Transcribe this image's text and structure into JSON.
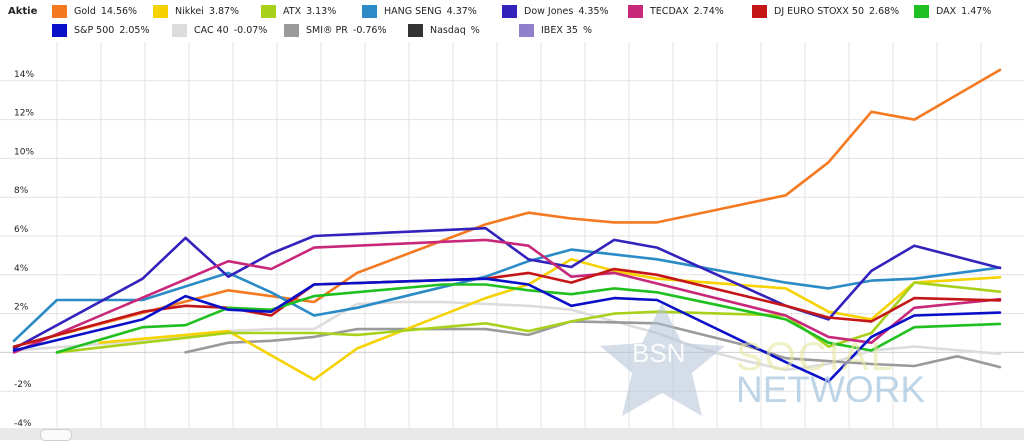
{
  "legend": {
    "title": "Aktie",
    "items": [
      {
        "name": "Gold",
        "value": "14.56%",
        "color": "#f47920"
      },
      {
        "name": "Nikkei",
        "value": "3.87%",
        "color": "#f5d200"
      },
      {
        "name": "ATX",
        "value": "3.13%",
        "color": "#a8d11c"
      },
      {
        "name": "HANG SENG",
        "value": "4.37%",
        "color": "#2a8bc7"
      },
      {
        "name": "Dow Jones",
        "value": "4.35%",
        "color": "#3322bb"
      },
      {
        "name": "TECDAX",
        "value": "2.74%",
        "color": "#c8287a"
      },
      {
        "name": "DJ EURO STOXX 50",
        "value": "2.68%",
        "color": "#c41616"
      },
      {
        "name": "DAX",
        "value": "1.47%",
        "color": "#20c020"
      },
      {
        "name": "S&P 500",
        "value": "2.05%",
        "color": "#0a10c8"
      },
      {
        "name": "CAC 40",
        "value": "-0.07%",
        "color": "#dcdcdc"
      },
      {
        "name": "SMI® PR",
        "value": "-0.76%",
        "color": "#9a9a9a"
      },
      {
        "name": "Nasdaq",
        "value": "%",
        "color": "#333333"
      },
      {
        "name": "IBEX 35",
        "value": "%",
        "color": "#9080cc"
      }
    ]
  },
  "watermark": {
    "line1": "BSN",
    "line2": "SOCIAL",
    "line3": "NETWORK"
  },
  "chart_data": {
    "type": "line",
    "ylim": [
      -4,
      16
    ],
    "yticks": [
      -4,
      -2,
      0,
      2,
      4,
      6,
      8,
      10,
      12,
      14
    ],
    "ytick_labels": [
      "-4%",
      "-2%",
      "",
      "2%",
      "4%",
      "6%",
      "8%",
      "10%",
      "12%",
      "14%"
    ],
    "grid": true,
    "x": [
      0,
      1,
      2,
      3,
      4,
      5,
      6,
      7,
      8,
      9,
      10,
      11,
      12,
      13,
      14,
      15,
      16,
      17,
      18,
      19,
      20,
      21,
      22,
      23
    ],
    "series": [
      {
        "name": "CAC 40",
        "color": "#dcdcdc",
        "values": [
          0.1,
          null,
          null,
          0.6,
          0.8,
          1.1,
          1.2,
          1.2,
          2.5,
          2.6,
          2.6,
          2.5,
          2.4,
          2.2,
          1.6,
          1.0,
          0.2,
          -0.4,
          -0.9,
          -0.6,
          0.1,
          0.3,
          null,
          -0.07
        ]
      },
      {
        "name": "SMI® PR",
        "color": "#9a9a9a",
        "values": [
          null,
          null,
          null,
          null,
          0.0,
          0.5,
          0.6,
          0.8,
          1.2,
          null,
          1.2,
          1.2,
          0.9,
          1.6,
          null,
          1.5,
          null,
          0.4,
          -0.3,
          null,
          -0.6,
          -0.7,
          -0.2,
          -0.76
        ]
      },
      {
        "name": "Gold",
        "color": "#f47920",
        "values": [
          0.3,
          null,
          null,
          null,
          null,
          3.2,
          null,
          2.6,
          4.1,
          null,
          null,
          6.6,
          7.2,
          6.9,
          6.7,
          6.7,
          null,
          null,
          8.1,
          9.8,
          12.4,
          12.0,
          null,
          14.56
        ]
      },
      {
        "name": "Nikkei",
        "color": "#f5d200",
        "values": [
          null,
          null,
          0.5,
          null,
          null,
          1.1,
          null,
          -1.4,
          0.2,
          null,
          null,
          2.8,
          3.5,
          4.8,
          4.2,
          3.8,
          null,
          null,
          3.3,
          2.1,
          1.7,
          3.6,
          null,
          3.87
        ]
      },
      {
        "name": "ATX",
        "color": "#a8d11c",
        "values": [
          null,
          0.0,
          null,
          null,
          null,
          1.0,
          null,
          1.0,
          0.9,
          null,
          1.3,
          1.5,
          1.1,
          1.6,
          2.0,
          2.1,
          null,
          null,
          1.9,
          0.3,
          1.0,
          3.6,
          null,
          3.13
        ]
      },
      {
        "name": "HANG SENG",
        "color": "#2a8bc7",
        "values": [
          0.6,
          2.7,
          null,
          2.7,
          null,
          4.1,
          3.1,
          1.9,
          2.3,
          null,
          null,
          3.9,
          4.7,
          5.3,
          null,
          4.8,
          null,
          null,
          3.6,
          3.3,
          3.7,
          3.8,
          null,
          4.37
        ]
      },
      {
        "name": "Dow Jones",
        "color": "#3322bb",
        "values": [
          0.2,
          null,
          null,
          3.8,
          5.9,
          3.9,
          5.1,
          6.0,
          null,
          null,
          null,
          6.4,
          4.8,
          4.4,
          5.8,
          5.4,
          null,
          null,
          2.4,
          1.7,
          4.2,
          5.5,
          null,
          4.35
        ]
      },
      {
        "name": "TECDAX",
        "color": "#c8287a",
        "values": [
          0.0,
          null,
          null,
          null,
          null,
          4.7,
          4.3,
          5.4,
          null,
          null,
          null,
          5.8,
          5.5,
          3.9,
          4.1,
          null,
          null,
          null,
          1.9,
          0.8,
          0.5,
          2.3,
          null,
          2.74
        ]
      },
      {
        "name": "DJ EURO STOXX 50",
        "color": "#c41616",
        "values": [
          0.3,
          null,
          null,
          2.1,
          2.4,
          2.3,
          1.9,
          3.5,
          null,
          null,
          null,
          3.8,
          4.1,
          3.6,
          4.3,
          4.0,
          null,
          null,
          2.4,
          1.8,
          1.6,
          2.8,
          null,
          2.68
        ]
      },
      {
        "name": "DAX",
        "color": "#20c020",
        "values": [
          null,
          0.0,
          null,
          1.3,
          1.4,
          2.3,
          2.2,
          2.9,
          null,
          null,
          3.5,
          3.5,
          3.2,
          3.0,
          3.3,
          3.1,
          null,
          null,
          1.7,
          0.5,
          0.1,
          1.3,
          null,
          1.47
        ]
      },
      {
        "name": "S&P 500",
        "color": "#0a10c8",
        "values": [
          0.1,
          null,
          null,
          1.7,
          2.9,
          2.2,
          2.1,
          3.5,
          null,
          null,
          null,
          3.8,
          3.5,
          2.4,
          2.8,
          2.7,
          null,
          null,
          -0.5,
          -1.5,
          0.8,
          1.9,
          null,
          2.05
        ]
      }
    ]
  }
}
